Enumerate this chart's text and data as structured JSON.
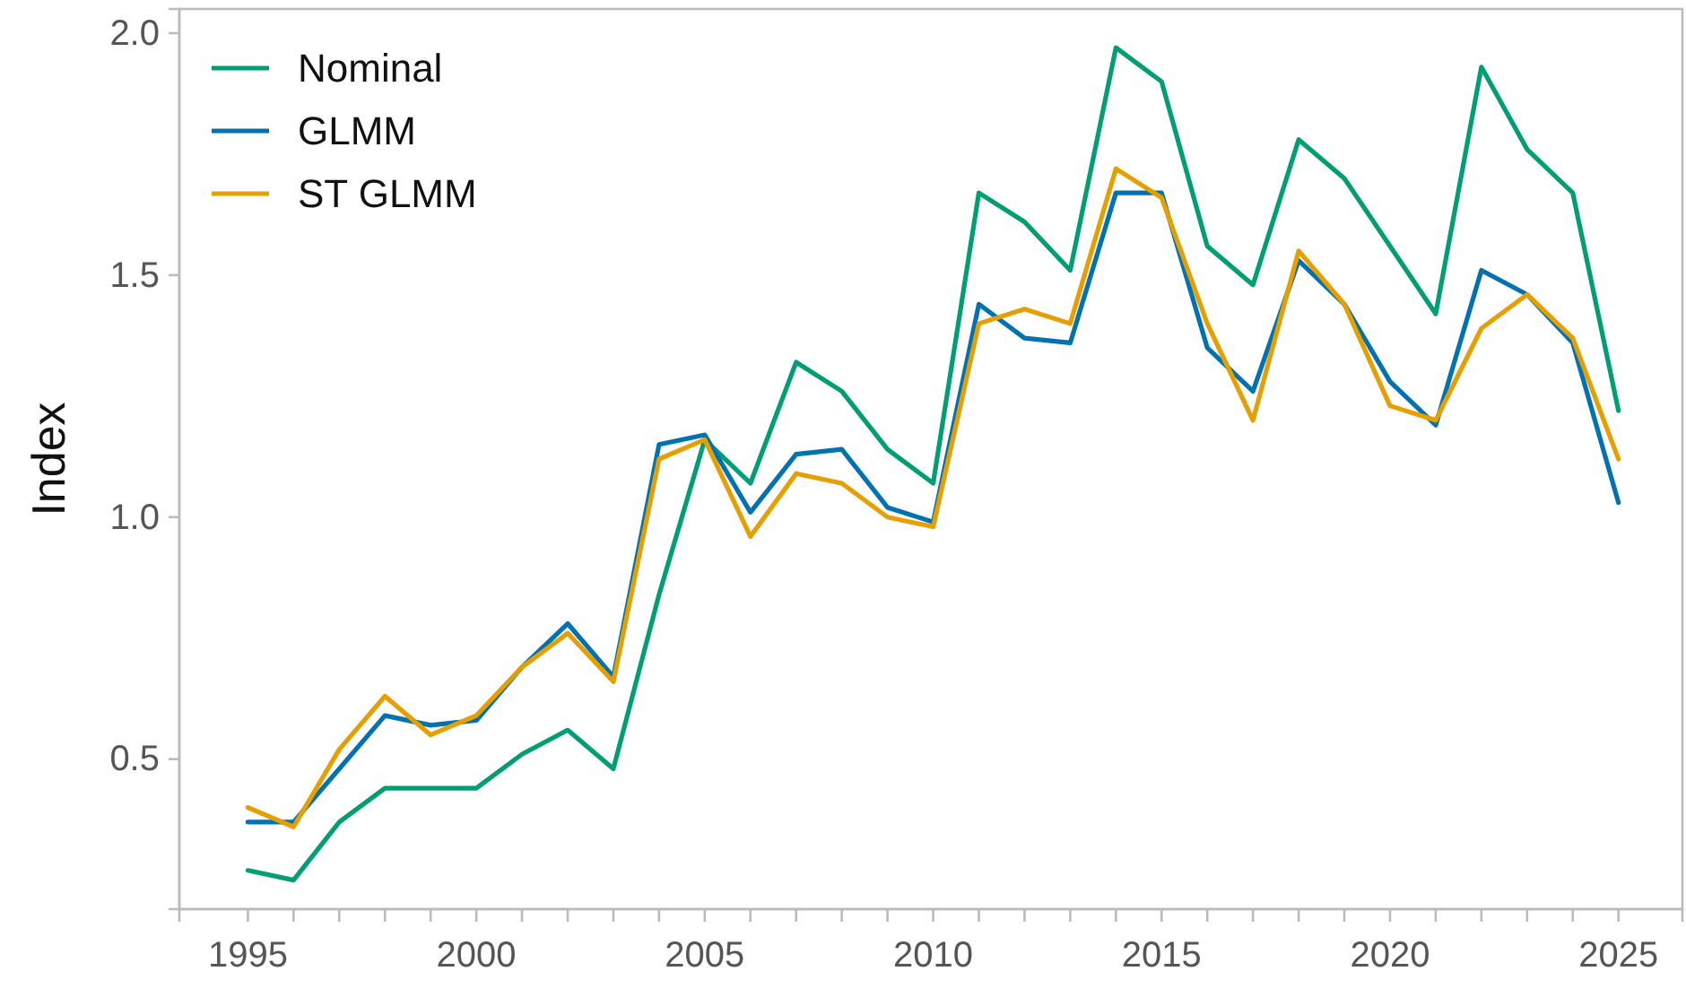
{
  "chart_data": {
    "type": "line",
    "ylabel": "Index",
    "x": [
      1995,
      1996,
      1997,
      1998,
      1999,
      2000,
      2001,
      2002,
      2003,
      2004,
      2005,
      2006,
      2007,
      2008,
      2009,
      2010,
      2011,
      2012,
      2013,
      2014,
      2015,
      2016,
      2017,
      2018,
      2019,
      2020,
      2021,
      2022,
      2023,
      2024,
      2025
    ],
    "series": [
      {
        "name": "Nominal",
        "color": "#009e73",
        "values": [
          0.27,
          0.25,
          0.37,
          0.44,
          0.44,
          0.44,
          0.51,
          0.56,
          0.48,
          0.84,
          1.16,
          1.07,
          1.32,
          1.26,
          1.14,
          1.07,
          1.67,
          1.61,
          1.51,
          1.97,
          1.9,
          1.56,
          1.48,
          1.78,
          1.7,
          1.56,
          1.42,
          1.93,
          1.76,
          1.67,
          1.22
        ]
      },
      {
        "name": "GLMM",
        "color": "#0072b2",
        "values": [
          0.37,
          0.37,
          0.48,
          0.59,
          0.57,
          0.58,
          0.69,
          0.78,
          0.67,
          1.15,
          1.17,
          1.01,
          1.13,
          1.14,
          1.02,
          0.99,
          1.44,
          1.37,
          1.36,
          1.67,
          1.67,
          1.35,
          1.26,
          1.53,
          1.44,
          1.28,
          1.19,
          1.51,
          1.46,
          1.36,
          1.03
        ]
      },
      {
        "name": "ST GLMM",
        "color": "#e69f00",
        "values": [
          0.4,
          0.36,
          0.52,
          0.63,
          0.55,
          0.59,
          0.69,
          0.76,
          0.66,
          1.12,
          1.16,
          0.96,
          1.09,
          1.07,
          1.0,
          0.98,
          1.4,
          1.43,
          1.4,
          1.72,
          1.66,
          1.4,
          1.2,
          1.55,
          1.44,
          1.23,
          1.2,
          1.39,
          1.46,
          1.37,
          1.12
        ]
      }
    ],
    "xlim": [
      1993.5,
      2026.4
    ],
    "xticks": [
      1995,
      {
        "value": 1996,
        "label": null
      },
      {
        "value": 1997,
        "label": null
      },
      {
        "value": 1998,
        "label": null
      },
      {
        "value": 1999,
        "label": null
      },
      2000,
      {
        "value": 2001,
        "label": null
      },
      {
        "value": 2002,
        "label": null
      },
      {
        "value": 2003,
        "label": null
      },
      {
        "value": 2004,
        "label": null
      },
      2005,
      {
        "value": 2006,
        "label": null
      },
      {
        "value": 2007,
        "label": null
      },
      {
        "value": 2008,
        "label": null
      },
      {
        "value": 2009,
        "label": null
      },
      2010,
      {
        "value": 2011,
        "label": null
      },
      {
        "value": 2012,
        "label": null
      },
      {
        "value": 2013,
        "label": null
      },
      {
        "value": 2014,
        "label": null
      },
      2015,
      {
        "value": 2016,
        "label": null
      },
      {
        "value": 2017,
        "label": null
      },
      {
        "value": 2018,
        "label": null
      },
      {
        "value": 2019,
        "label": null
      },
      2020,
      {
        "value": 2021,
        "label": null
      },
      {
        "value": 2022,
        "label": null
      },
      {
        "value": 2023,
        "label": null
      },
      {
        "value": 2024,
        "label": null
      },
      2025
    ],
    "ylim": [
      0.19,
      2.05
    ],
    "yticks": [
      {
        "value": 0.5,
        "label": "0.5"
      },
      {
        "value": 1,
        "label": "1.0"
      },
      {
        "value": 1.5,
        "label": "1.5"
      },
      {
        "value": 2,
        "label": "2.0"
      }
    ],
    "legend": "top left",
    "line_style": "solid",
    "marker": "none"
  }
}
